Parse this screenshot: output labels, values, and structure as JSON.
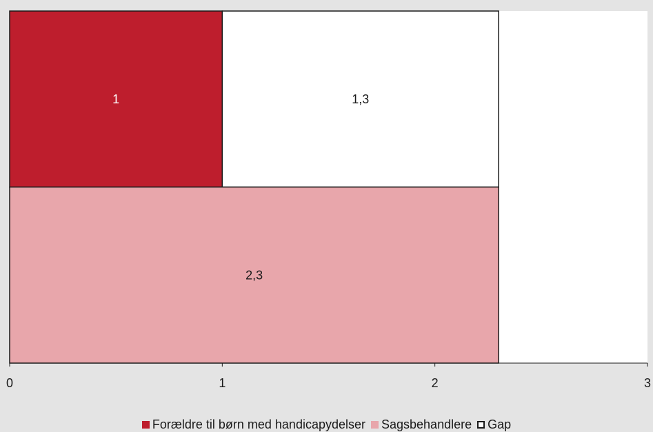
{
  "chart_data": {
    "type": "bar",
    "orientation": "horizontal",
    "stacked": true,
    "categories": [
      "",
      ""
    ],
    "series": [
      {
        "name": "Forældre til børn med handicapydelser",
        "color": "#be1e2d",
        "label_color": "#ffffff",
        "values": [
          1,
          null
        ],
        "labels": [
          "1",
          ""
        ]
      },
      {
        "name": "Sagsbehandlere",
        "color": "#e8a6ab",
        "label_color": "#1a1a1a",
        "values": [
          null,
          2.3
        ],
        "labels": [
          "",
          "2,3"
        ]
      },
      {
        "name": "Gap",
        "color": "#ffffff",
        "label_color": "#1a1a1a",
        "values": [
          1.3,
          null
        ],
        "labels": [
          "1,3",
          ""
        ]
      }
    ],
    "xlim": [
      0,
      3
    ],
    "xticks": [
      "0",
      "1",
      "2",
      "3"
    ],
    "grid": false,
    "legend_position": "bottom",
    "title": "",
    "xlabel": "",
    "ylabel": ""
  }
}
